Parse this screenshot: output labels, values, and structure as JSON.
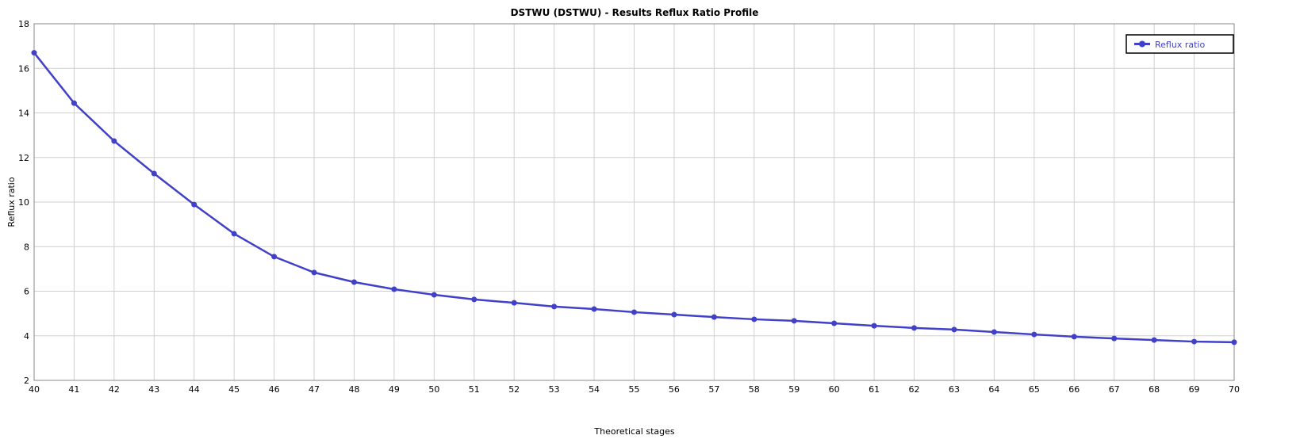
{
  "chart_data": {
    "type": "line",
    "title": "DSTWU (DSTWU) - Results Reflux Ratio Profile",
    "xlabel": "Theoretical stages",
    "ylabel": "Reflux ratio",
    "xlim": [
      40,
      70
    ],
    "ylim": [
      2,
      18
    ],
    "xticks": [
      40,
      41,
      42,
      43,
      44,
      45,
      46,
      47,
      48,
      49,
      50,
      51,
      52,
      53,
      54,
      55,
      56,
      57,
      58,
      59,
      60,
      61,
      62,
      63,
      64,
      65,
      66,
      67,
      68,
      69,
      70
    ],
    "yticks": [
      2,
      4,
      6,
      8,
      10,
      12,
      14,
      16,
      18
    ],
    "grid": true,
    "legend_position": "top-right",
    "series": [
      {
        "name": "Reflux ratio",
        "color": "#4040c8",
        "x": [
          40,
          41,
          42,
          43,
          44,
          45,
          46,
          47,
          48,
          49,
          50,
          51,
          52,
          53,
          54,
          55,
          56,
          57,
          58,
          59,
          60,
          61,
          62,
          63,
          64,
          65,
          66,
          67,
          68,
          69,
          70
        ],
        "values": [
          16.7,
          14.44,
          12.74,
          11.28,
          9.89,
          8.58,
          7.55,
          6.84,
          6.41,
          6.09,
          5.84,
          5.63,
          5.48,
          5.31,
          5.2,
          5.06,
          4.95,
          4.84,
          4.74,
          4.67,
          4.56,
          4.45,
          4.35,
          4.28,
          4.17,
          4.06,
          3.96,
          3.88,
          3.81,
          3.74,
          3.71
        ]
      }
    ]
  }
}
